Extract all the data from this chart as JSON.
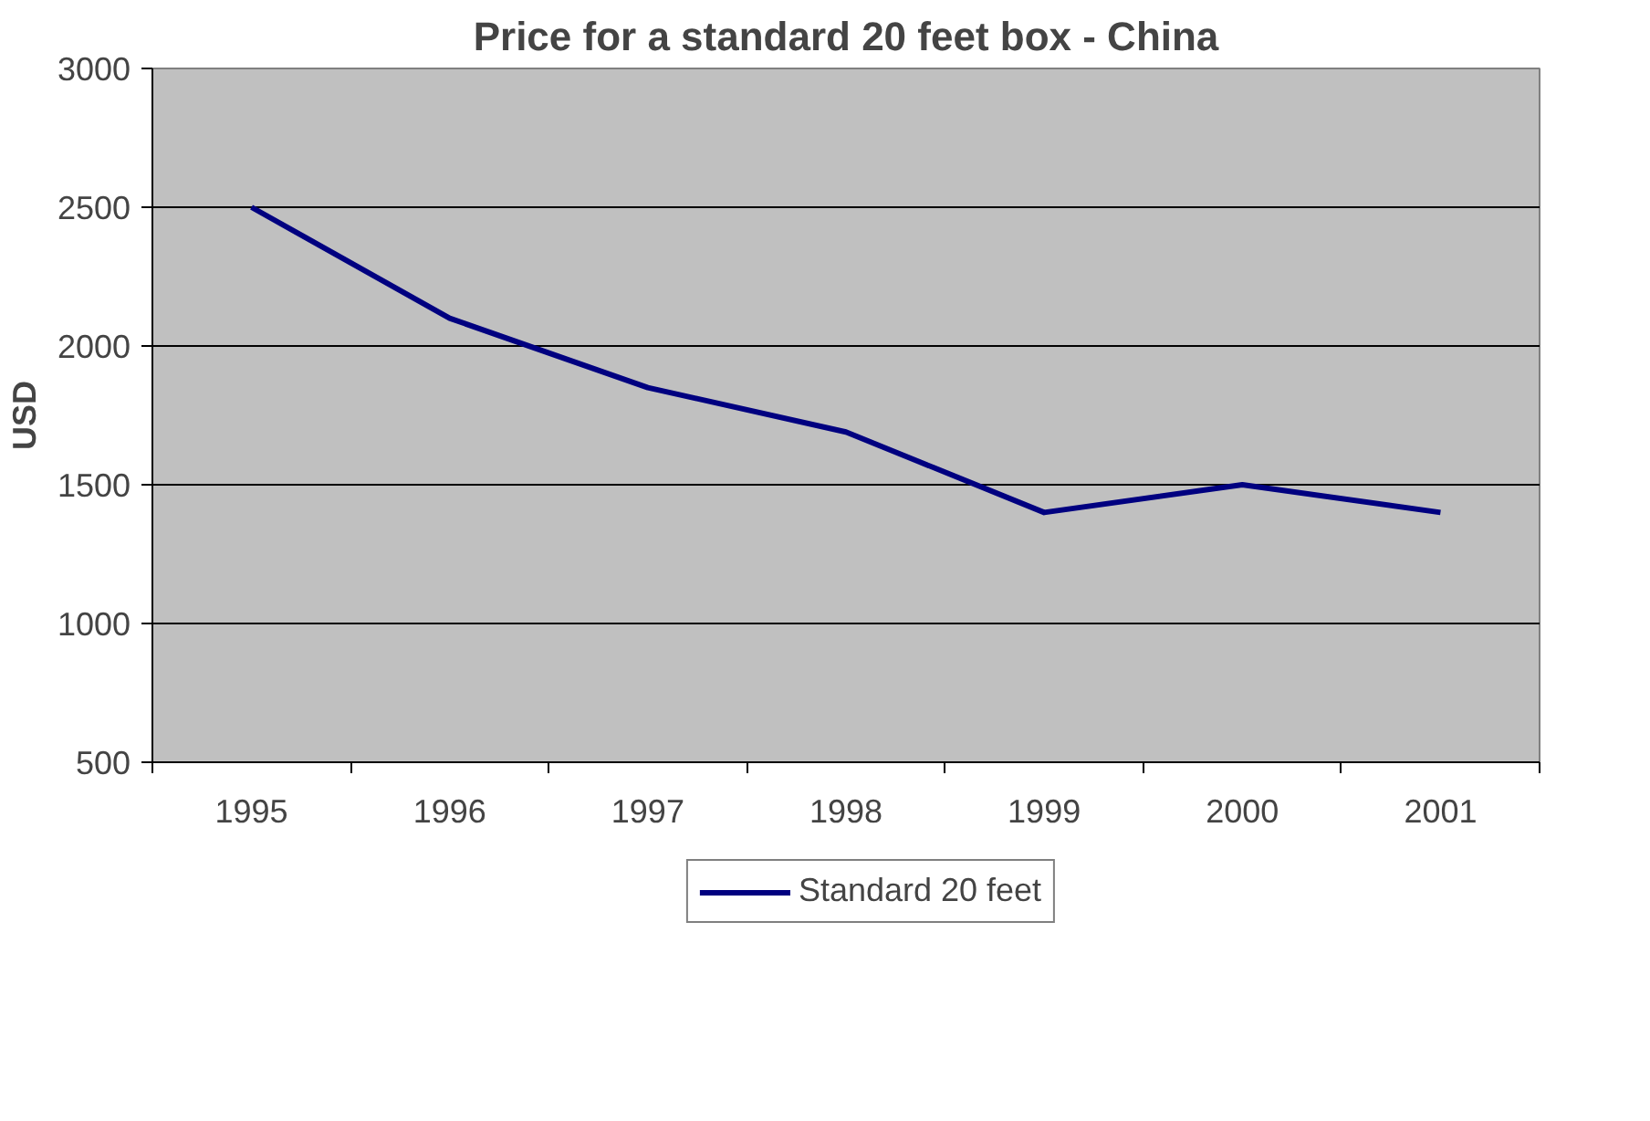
{
  "chart_data": {
    "type": "line",
    "title": "Price for a standard 20 feet box - China",
    "ylabel": "USD",
    "categories": [
      "1995",
      "1996",
      "1997",
      "1998",
      "1999",
      "2000",
      "2001"
    ],
    "series": [
      {
        "name": "Standard 20 feet",
        "color": "#000080",
        "values": [
          2500,
          2100,
          1850,
          1690,
          1400,
          1500,
          1400
        ]
      }
    ],
    "ylim": [
      500,
      3000
    ],
    "yticks": [
      500,
      1000,
      1500,
      2000,
      2500,
      3000
    ],
    "grid": "y",
    "legend": "bottom",
    "marker": "none",
    "line_style": "solid"
  }
}
